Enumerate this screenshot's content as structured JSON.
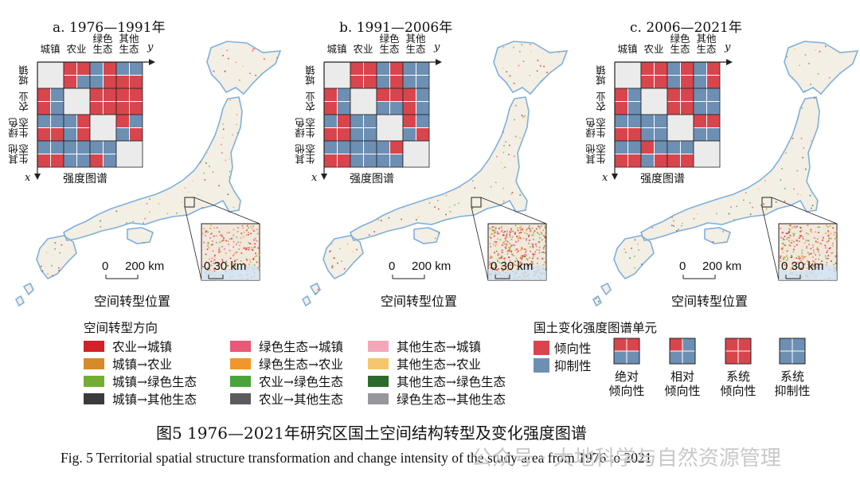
{
  "colors": {
    "red": "#d9454c",
    "blue": "#6e8fb4",
    "gray": "#ebebeb",
    "map_coast": "#7fb0dc",
    "map_land": "#f3efe4"
  },
  "panels": [
    {
      "title": "a. 1976—1991年",
      "matrix": [
        [
          "G",
          "RRRB",
          "BRBR",
          "BBRR"
        ],
        [
          "RBRB",
          "G",
          "RRRR",
          "RRRR"
        ],
        [
          "BBRR",
          "BRBR",
          "G",
          "RBBR"
        ],
        [
          "BBRR",
          "BBBB",
          "BBRB",
          "G"
        ]
      ],
      "density": 0.5
    },
    {
      "title": "b. 1991—2006年",
      "matrix": [
        [
          "G",
          "RRRR",
          "BRBR",
          "BBBB"
        ],
        [
          "RBRB",
          "G",
          "RRBB",
          "RBRB"
        ],
        [
          "BRRR",
          "BBBB",
          "G",
          "RBBR"
        ],
        [
          "BBRR",
          "BBBB",
          "BRBB",
          "G"
        ]
      ],
      "density": 0.9
    },
    {
      "title": "c. 2006—2021年",
      "matrix": [
        [
          "G",
          "RRRR",
          "BRBR",
          "BRBR"
        ],
        [
          "RBRB",
          "G",
          "RRRR",
          "BBBB"
        ],
        [
          "BBRR",
          "BBBB",
          "G",
          "RRBB"
        ],
        [
          "BBRR",
          "RBBR",
          "BBRR",
          "G"
        ]
      ],
      "density": 0.6
    }
  ],
  "matrix_labels": {
    "col_headers": [
      "城镇",
      "农业",
      "绿色\n生态",
      "其他\n生态"
    ],
    "row_headers": [
      "城镇",
      "农业",
      "绿色\n生态",
      "其他\n生态"
    ],
    "axis_x": "x",
    "axis_y": "y",
    "caption": "强度图谱"
  },
  "map_labels": {
    "scale_zero": "0",
    "scale_main": "200 km",
    "scale_inset": "0 30 km",
    "location_label": "空间转型位置"
  },
  "legend_transform": {
    "title": "空间转型方向",
    "items": [
      {
        "label": "农业→城镇",
        "color": "#d32029"
      },
      {
        "label": "城镇→农业",
        "color": "#d8892a"
      },
      {
        "label": "城镇→绿色生态",
        "color": "#74ad33"
      },
      {
        "label": "城镇→其他生态",
        "color": "#3b3b3d"
      },
      {
        "label": "绿色生态→城镇",
        "color": "#e95876"
      },
      {
        "label": "绿色生态→农业",
        "color": "#f0962b"
      },
      {
        "label": "农业→绿色生态",
        "color": "#4aa33b"
      },
      {
        "label": "农业→其他生态",
        "color": "#5b5c60"
      },
      {
        "label": "其他生态→城镇",
        "color": "#f3a7b9"
      },
      {
        "label": "其他生态→农业",
        "color": "#f6c66d"
      },
      {
        "label": "其他生态→绿色生态",
        "color": "#2d6a2b"
      },
      {
        "label": "绿色生态→其他生态",
        "color": "#95979b"
      }
    ]
  },
  "legend_intensity": {
    "title": "国土变化强度图谱单元",
    "tendency": "倾向性",
    "inhibition": "抑制性",
    "units": [
      {
        "label": "绝对\n倾向性",
        "pattern": "RRBB"
      },
      {
        "label": "相对\n倾向性",
        "pattern": "RBBB"
      },
      {
        "label": "系统\n倾向性",
        "pattern": "RRRR"
      },
      {
        "label": "系统\n抑制性",
        "pattern": "BBBB"
      }
    ]
  },
  "caption": {
    "zh": "图5   1976—2021年研究区国土空间结构转型及变化强度图谱",
    "en": "Fig. 5   Territorial spatial structure transformation and change intensity of the study area from 1976 to 2021"
  },
  "watermark": "公众号 · 大地科学与自然资源管理"
}
